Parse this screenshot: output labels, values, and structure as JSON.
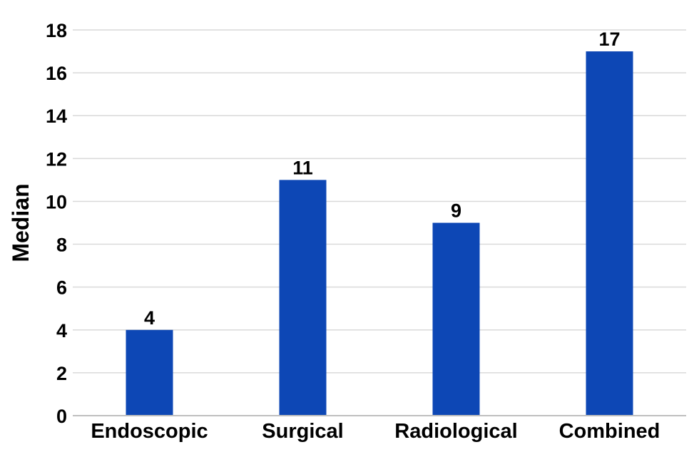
{
  "chart_data": {
    "type": "bar",
    "categories": [
      "Endoscopic",
      "Surgical",
      "Radiological",
      "Combined"
    ],
    "values": [
      4,
      11,
      9,
      17
    ],
    "data_labels": [
      "4",
      "11",
      "9",
      "17"
    ],
    "title": "",
    "xlabel": "",
    "ylabel": "Median",
    "ylim": [
      0,
      18
    ],
    "yticks": [
      0,
      2,
      4,
      6,
      8,
      10,
      12,
      14,
      16,
      18
    ],
    "grid": true,
    "legend": "none",
    "bar_color": "#0d47b5"
  }
}
